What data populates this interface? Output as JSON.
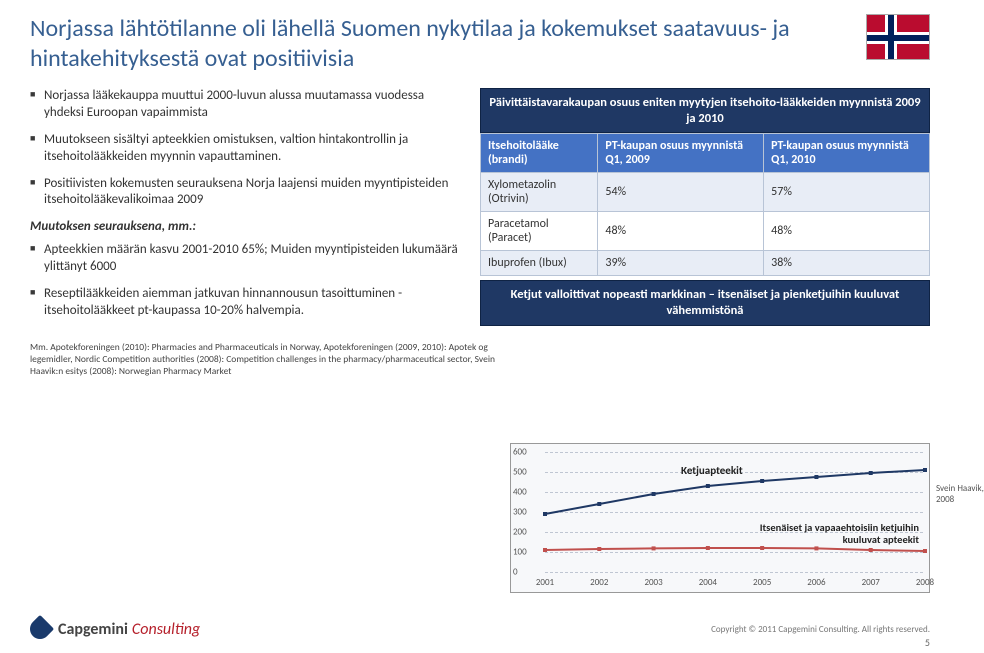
{
  "title": "Norjassa lähtötilanne oli lähellä Suomen nykytilaa ja kokemukset saatavuus- ja hintakehityksestä ovat positiivisia",
  "title_color": "#365F91",
  "flag": {
    "bg": "#BA0C2F",
    "white": "#FFFFFF",
    "blue": "#00205B"
  },
  "left": {
    "bullets_top": [
      "Norjassa lääkekauppa muuttui 2000-luvun alussa muutamassa vuodessa yhdeksi Euroopan vapaimmista",
      "Muutokseen sisältyi apteekkien omistuksen, valtion hintakontrollin ja itsehoitolääkkeiden myynnin vapauttaminen.",
      "Positiivisten kokemusten seurauksena Norja laajensi muiden myyntipisteiden itsehoitolääkevalikoimaa 2009"
    ],
    "subhead": "Muutoksen seurauksena, mm.:",
    "bullets_bottom": [
      "Apteekkien määrän kasvu 2001-2010 65%; Muiden myyntipisteiden lukumäärä ylittänyt 6000",
      "Reseptilääkkeiden aiemman jatkuvan hinnannousun tasoittuminen -  itsehoitolääkkeet pt-kaupassa 10-20% halvempia."
    ]
  },
  "right": {
    "banner_top": "Päivittäistavarakaupan osuus eniten myytyjen itsehoito-lääkkeiden myynnistä 2009 ja 2010",
    "table": {
      "columns": [
        "Itsehoitolääke (brandi)",
        "PT-kaupan osuus myynnistä Q1, 2009",
        "PT-kaupan osuus myynnistä Q1, 2010"
      ],
      "header_bg": "#4472C4",
      "header_fg": "#FFFFFF",
      "row_alt_bg": "#E8EDF6",
      "rows": [
        [
          "Xylometazolin (Otrivin)",
          "54%",
          "57%"
        ],
        [
          "Paracetamol (Paracet)",
          "48%",
          "48%"
        ],
        [
          "Ibuprofen (Ibux)",
          "39%",
          "38%"
        ]
      ]
    },
    "banner_bottom": "Ketjut valloittivat nopeasti markkinan – itsenäiset ja pienketjuihin kuuluvat vähemmistönä",
    "banner_bg": "#1F3864",
    "banner_fg": "#FFFFFF"
  },
  "citation": "Mm. Apotekforeningen (2010): Pharmacies and Pharmaceuticals in Norway, Apotekforeningen (2009, 2010): Apotek og legemidler, Nordic Competition authorities (2008): Competition challenges in the pharmacy/pharmaceutical sector, Svein Haavik:n esitys (2008): Norwegian Pharmacy Market",
  "chart": {
    "type": "line",
    "xlabel_years": [
      "2001",
      "2002",
      "2003",
      "2004",
      "2005",
      "2006",
      "2007",
      "2008"
    ],
    "ylim": [
      0,
      600
    ],
    "ytick_step": 100,
    "series": [
      {
        "name": "Ketjuapteekit",
        "color": "#1F3864",
        "values": [
          290,
          340,
          390,
          430,
          455,
          475,
          495,
          510
        ]
      },
      {
        "name": "Itsenäiset ja vapaaehtoisiin ketjuihin kuuluvat apteekit",
        "color": "#C0504D",
        "values": [
          110,
          115,
          118,
          120,
          120,
          118,
          110,
          105
        ]
      }
    ],
    "label1": "Ketjuapteekit",
    "label2": "Itsenäiset ja vapaaehtoisiin ketjuihin kuuluvat apteekit",
    "background_color": "#f7f8fa",
    "grid_color": "#bfc6d2",
    "credit": "Svein Haavik, 2008"
  },
  "logo": {
    "brand": "Capgemini",
    "sub": "Consulting"
  },
  "copyright": "Copyright © 2011 Capgemini Consulting. All rights reserved.",
  "page_number": "5"
}
